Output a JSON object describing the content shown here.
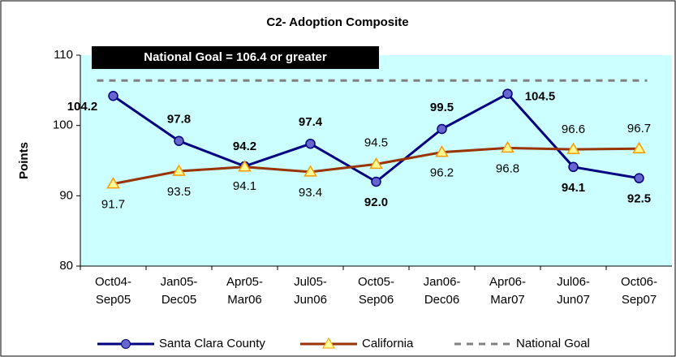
{
  "chart_data": {
    "type": "line",
    "title": "C2- Adoption Composite",
    "ylabel": "Points",
    "annotation": "National Goal = 106.4 or greater",
    "categories": [
      [
        "Oct04-",
        "Sep05"
      ],
      [
        "Jan05-",
        "Dec05"
      ],
      [
        "Apr05-",
        "Mar06"
      ],
      [
        "Jul05-",
        "Jun06"
      ],
      [
        "Oct05-",
        "Sep06"
      ],
      [
        "Jan06-",
        "Dec06"
      ],
      [
        "Apr06-",
        "Mar07"
      ],
      [
        "Jul06-",
        "Jun07"
      ],
      [
        "Oct06-",
        "Sep07"
      ]
    ],
    "series": [
      {
        "name": "Santa Clara County",
        "color": "#000080",
        "values": [
          104.2,
          97.8,
          94.2,
          97.4,
          92.0,
          99.5,
          104.5,
          94.1,
          92.5
        ],
        "value_labels": [
          "104.2",
          "97.8",
          "94.2",
          "97.4",
          "92.0",
          "99.5",
          "104.5",
          "94.1",
          "92.5"
        ]
      },
      {
        "name": "California",
        "color": "#993300",
        "values": [
          91.7,
          93.5,
          94.1,
          93.4,
          94.5,
          96.2,
          96.8,
          96.6,
          96.7
        ],
        "value_labels": [
          "91.7",
          "93.5",
          "94.1",
          "93.4",
          "94.5",
          "96.2",
          "96.8",
          "96.6",
          "96.7"
        ]
      },
      {
        "name": "National Goal",
        "color": "#808080",
        "values": [
          106.4,
          106.4,
          106.4,
          106.4,
          106.4,
          106.4,
          106.4,
          106.4,
          106.4
        ]
      }
    ],
    "ylim": [
      80,
      110
    ],
    "yticks": [
      80,
      90,
      100,
      110
    ]
  }
}
